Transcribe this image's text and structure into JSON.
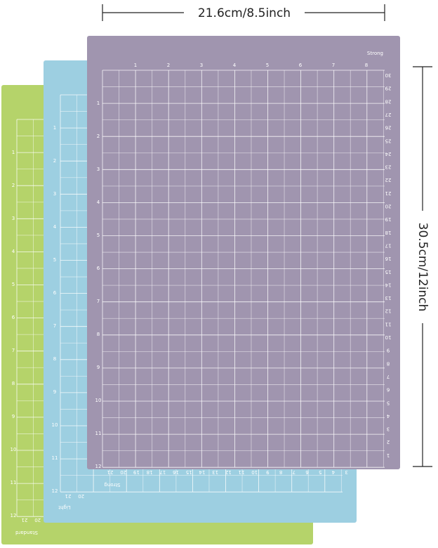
{
  "width_label": "21.6cm/8.5inch",
  "height_label": "30.5cm/12inch",
  "mats": [
    {
      "name": "Standard",
      "left": [
        1,
        2,
        3,
        4,
        5,
        6,
        7,
        8,
        9,
        10,
        11,
        12
      ],
      "bottom": [
        21,
        20
      ]
    },
    {
      "name": "Light",
      "left": [
        1,
        2,
        3,
        4,
        5,
        6,
        7,
        8,
        9,
        10,
        11,
        12
      ],
      "bottom": [
        21,
        20
      ]
    },
    {
      "name": "Strong",
      "top": [
        1,
        2,
        3,
        4,
        5,
        6,
        7,
        8
      ],
      "left": [
        1,
        2,
        3,
        4,
        5,
        6,
        7,
        8,
        9,
        10,
        11,
        12
      ],
      "right": [
        30,
        29,
        28,
        27,
        26,
        25,
        24,
        23,
        22,
        21,
        20,
        19,
        18,
        17,
        16,
        15,
        14,
        13,
        12,
        11,
        10,
        9,
        8,
        7,
        6,
        5,
        4,
        3,
        2,
        1
      ],
      "bottom": [
        21,
        20,
        19,
        18,
        17,
        16,
        15,
        14,
        13,
        12,
        11,
        10,
        9,
        8,
        7,
        6,
        5,
        4,
        3,
        2,
        1
      ]
    }
  ]
}
